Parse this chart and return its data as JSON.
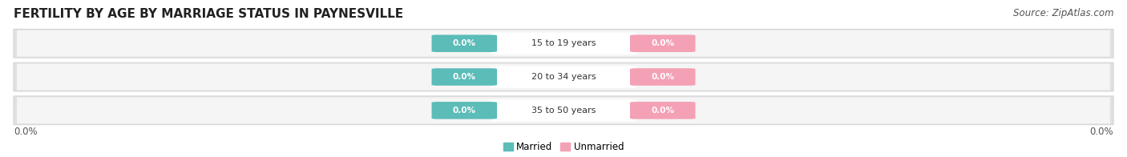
{
  "title": "FERTILITY BY AGE BY MARRIAGE STATUS IN PAYNESVILLE",
  "source": "Source: ZipAtlas.com",
  "categories": [
    "15 to 19 years",
    "20 to 34 years",
    "35 to 50 years"
  ],
  "married_values": [
    0.0,
    0.0,
    0.0
  ],
  "unmarried_values": [
    0.0,
    0.0,
    0.0
  ],
  "married_color": "#5bbcb8",
  "unmarried_color": "#f4a0b5",
  "bar_row_bg_outer": "#d8d8d8",
  "bar_row_bg_inner": "#f0f0f0",
  "x_left_label": "0.0%",
  "x_right_label": "0.0%",
  "legend_married": "Married",
  "legend_unmarried": "Unmarried",
  "title_fontsize": 11,
  "source_fontsize": 8.5,
  "bg_color": "#ffffff"
}
